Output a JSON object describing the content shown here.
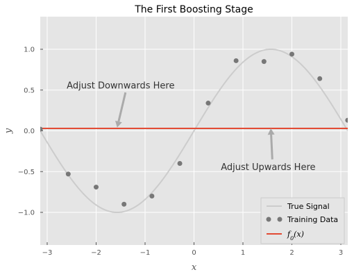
{
  "chart_data": {
    "type": "line",
    "title": "The First Boosting Stage",
    "xlabel": "x",
    "ylabel": "y",
    "xlim": [
      -3.14159,
      3.14159
    ],
    "ylim": [
      -1.4,
      1.4
    ],
    "x_ticks": [
      -3,
      -2,
      -1,
      0,
      1,
      2,
      3
    ],
    "x_tick_labels": [
      "−3",
      "−2",
      "−1",
      "0",
      "1",
      "2",
      "3"
    ],
    "y_ticks": [
      -1.0,
      -0.5,
      0.0,
      0.5,
      1.0
    ],
    "y_tick_labels": [
      "−1.0",
      "−0.5",
      "0.0",
      "0.5",
      "1.0"
    ],
    "grid": true,
    "legend_placement": "lower-right",
    "true_signal": {
      "name": "True Signal",
      "function": "sin(x)",
      "color": "#cccccc"
    },
    "training_data": {
      "name": "Training Data",
      "color": "#777777",
      "x": [
        -3.14,
        -2.57,
        -2.0,
        -1.43,
        -0.86,
        -0.29,
        0.29,
        0.86,
        1.43,
        2.0,
        2.57,
        3.14
      ],
      "y": [
        0.02,
        -0.53,
        -0.69,
        -0.9,
        -0.8,
        -0.4,
        0.34,
        0.86,
        0.85,
        0.94,
        0.64,
        0.13
      ]
    },
    "f0": {
      "name_prefix": "f",
      "name_sub": "0",
      "name_suffix": "(x)",
      "value": 0.03,
      "color": "#e24a33"
    },
    "annotations": [
      {
        "text": "Adjust Downwards Here",
        "text_x": -2.6,
        "text_y": 0.52,
        "tip_x": -1.57,
        "tip_y": 0.04,
        "from_x": -1.4,
        "from_y": 0.47
      },
      {
        "text": "Adjust Upwards Here",
        "text_x": 0.55,
        "text_y": -0.48,
        "tip_x": 1.57,
        "tip_y": 0.03,
        "from_x": 1.6,
        "from_y": -0.35
      }
    ],
    "arrow_color": "#aaaaaa"
  }
}
